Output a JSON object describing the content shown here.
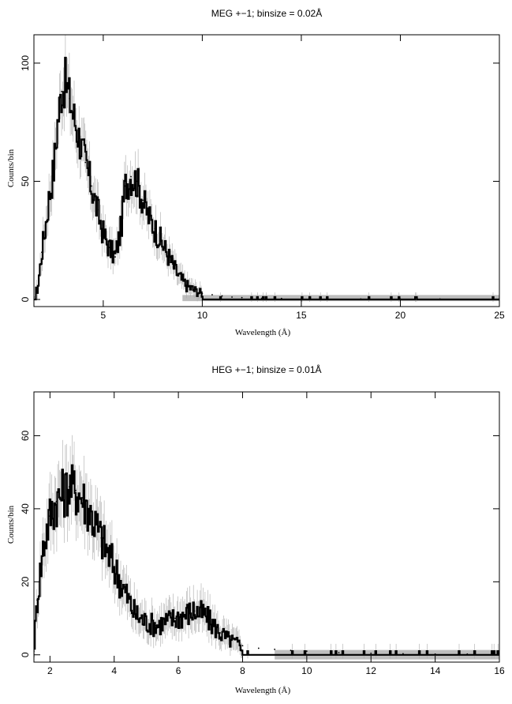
{
  "chart_data": [
    {
      "type": "line",
      "title": "MEG +−1; binsize = 0.02Å",
      "xlabel": "Wavelength (Å)",
      "ylabel": "Counts/bin",
      "xlim": [
        1.5,
        25
      ],
      "ylim": [
        -3,
        112
      ],
      "xticks": [
        5,
        10,
        15,
        20,
        25
      ],
      "yticks": [
        0,
        50,
        100
      ],
      "grid": false,
      "series": [
        {
          "style": "histogram with error bars and model band",
          "x": [
            1.5,
            1.7,
            1.9,
            2.1,
            2.3,
            2.5,
            2.7,
            2.9,
            3.1,
            3.3,
            3.5,
            3.8,
            4.1,
            4.4,
            4.7,
            5.0,
            5.3,
            5.6,
            5.9,
            6.1,
            6.4,
            6.7,
            7.0,
            7.3,
            7.6,
            7.9,
            8.2,
            8.5,
            8.8,
            9.2,
            9.6,
            10.0,
            10.5,
            11.0,
            11.5,
            12.0,
            12.5,
            13.0,
            14.0,
            15.0,
            16.0,
            18.0,
            20.0,
            22.0,
            25.0
          ],
          "y": [
            1,
            5,
            20,
            32,
            45,
            55,
            75,
            88,
            92,
            85,
            78,
            68,
            58,
            48,
            38,
            28,
            22,
            18,
            30,
            48,
            52,
            50,
            42,
            35,
            30,
            25,
            20,
            15,
            10,
            6,
            4,
            2.5,
            2,
            1.5,
            1,
            0.8,
            0.6,
            0.5,
            0.4,
            0.3,
            0.3,
            0.2,
            0.2,
            0.2,
            0.2
          ]
        }
      ]
    },
    {
      "type": "line",
      "title": "HEG +−1; binsize = 0.01Å",
      "xlabel": "Wavelength (Å)",
      "ylabel": "Counts/bin",
      "xlim": [
        1.5,
        16
      ],
      "ylim": [
        -2,
        72
      ],
      "xticks": [
        2,
        4,
        6,
        8,
        10,
        12,
        14,
        16
      ],
      "yticks": [
        0,
        20,
        40,
        60
      ],
      "grid": false,
      "series": [
        {
          "style": "histogram with error bars and model band",
          "x": [
            1.5,
            1.6,
            1.8,
            2.0,
            2.2,
            2.4,
            2.6,
            2.8,
            3.0,
            3.2,
            3.4,
            3.6,
            3.8,
            4.0,
            4.2,
            4.4,
            4.6,
            4.8,
            5.0,
            5.3,
            5.6,
            5.9,
            6.2,
            6.5,
            6.8,
            7.0,
            7.3,
            7.6,
            8.0,
            8.5,
            9.0,
            9.5,
            10.0,
            11.0,
            12.0,
            13.0,
            14.0,
            15.0,
            16.0
          ],
          "y": [
            1,
            15,
            30,
            38,
            42,
            44,
            46,
            45,
            43,
            40,
            36,
            32,
            28,
            24,
            20,
            16,
            12,
            10,
            9,
            8,
            9,
            10,
            11,
            12,
            11,
            9,
            6,
            4,
            2.5,
            1.8,
            1.5,
            1.2,
            1,
            0.6,
            0.4,
            0.3,
            0.2,
            0.2,
            0.2
          ]
        }
      ]
    }
  ]
}
